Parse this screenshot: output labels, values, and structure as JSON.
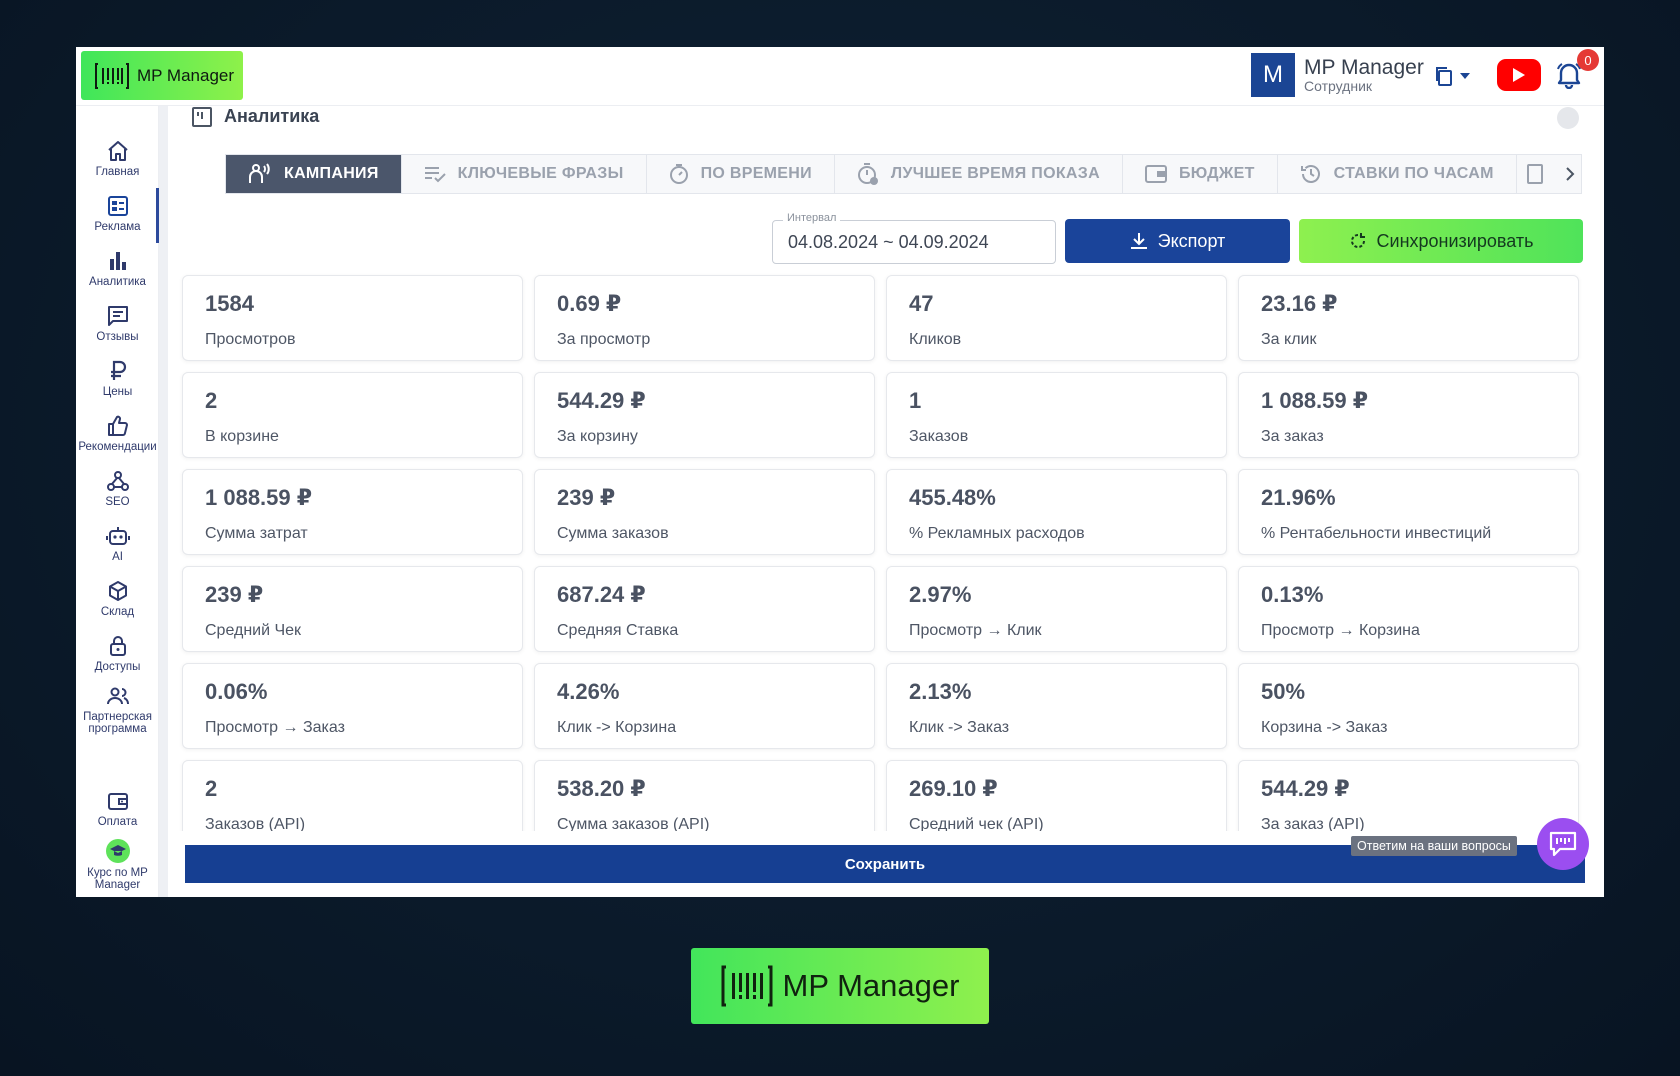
{
  "app": {
    "logo_text": "MP Manager",
    "colors": {
      "accent_green": "#5fe85a",
      "brand_blue": "#1a449a",
      "chat_purple": "#9b4ef0",
      "active_tab": "#4b566b"
    }
  },
  "header": {
    "avatar_letter": "M",
    "user_name": "MP Manager",
    "user_role": "Сотрудник",
    "notification_count": "0"
  },
  "sidebar": {
    "items": [
      {
        "label": "Главная",
        "icon": "home-icon"
      },
      {
        "label": "Реклама",
        "icon": "ads-icon",
        "active": true
      },
      {
        "label": "Аналитика",
        "icon": "bar-chart-icon"
      },
      {
        "label": "Отзывы",
        "icon": "message-icon"
      },
      {
        "label": "Цены",
        "icon": "ruble-icon"
      },
      {
        "label": "Рекомендации",
        "icon": "thumb-up-icon"
      },
      {
        "label": "SEO",
        "icon": "webhook-icon"
      },
      {
        "label": "AI",
        "icon": "robot-icon"
      },
      {
        "label": "Склад",
        "icon": "box-icon"
      },
      {
        "label": "Доступы",
        "icon": "lock-icon"
      },
      {
        "label": "Партнерская программа",
        "icon": "users-icon"
      },
      {
        "label": "Оплата",
        "icon": "wallet-icon"
      },
      {
        "label": "Курс по MP Manager",
        "icon": "graduation-icon"
      }
    ]
  },
  "main": {
    "section_title": "Аналитика",
    "tabs": [
      {
        "label": "КАМПАНИЯ",
        "active": true
      },
      {
        "label": "КЛЮЧЕВЫЕ ФРАЗЫ"
      },
      {
        "label": "ПО ВРЕМЕНИ"
      },
      {
        "label": "ЛУЧШЕЕ ВРЕМЯ ПОКАЗА"
      },
      {
        "label": "БЮДЖЕТ"
      },
      {
        "label": "СТАВКИ ПО ЧАСАМ"
      }
    ],
    "interval": {
      "label": "Интервал",
      "value": "04.08.2024 ~ 04.09.2024"
    },
    "export_label": "Экспорт",
    "sync_label": "Синхронизировать",
    "metrics": [
      {
        "value": "1584",
        "label": "Просмотров"
      },
      {
        "value": "0.69 ₽",
        "label": "За просмотр"
      },
      {
        "value": "47",
        "label": "Кликов"
      },
      {
        "value": "23.16 ₽",
        "label": "За клик"
      },
      {
        "value": "2",
        "label": "В корзине"
      },
      {
        "value": "544.29 ₽",
        "label": "За корзину"
      },
      {
        "value": "1",
        "label": "Заказов"
      },
      {
        "value": "1 088.59 ₽",
        "label": "За заказ"
      },
      {
        "value": "1 088.59 ₽",
        "label": "Сумма затрат"
      },
      {
        "value": "239 ₽",
        "label": "Сумма заказов"
      },
      {
        "value": "455.48%",
        "label": "% Рекламных расходов"
      },
      {
        "value": "21.96%",
        "label": "% Рентабельности инвестиций"
      },
      {
        "value": "239 ₽",
        "label": "Средний Чек"
      },
      {
        "value": "687.24 ₽",
        "label": "Средняя Ставка"
      },
      {
        "value": "2.97%",
        "label": "Просмотр → Клик"
      },
      {
        "value": "0.13%",
        "label": "Просмотр → Корзина"
      },
      {
        "value": "0.06%",
        "label": "Просмотр → Заказ"
      },
      {
        "value": "4.26%",
        "label": "Клик -> Корзина"
      },
      {
        "value": "2.13%",
        "label": "Клик -> Заказ"
      },
      {
        "value": "50%",
        "label": "Корзина -> Заказ"
      },
      {
        "value": "2",
        "label": "Заказов (API)"
      },
      {
        "value": "538.20 ₽",
        "label": "Сумма заказов (API)"
      },
      {
        "value": "269.10 ₽",
        "label": "Средний чек (API)"
      },
      {
        "value": "544.29 ₽",
        "label": "За заказ (API)"
      }
    ],
    "save_label": "Сохранить"
  },
  "chat": {
    "tooltip": "Ответим на ваши вопросы"
  },
  "footer": {
    "logo_text": "MP Manager"
  }
}
